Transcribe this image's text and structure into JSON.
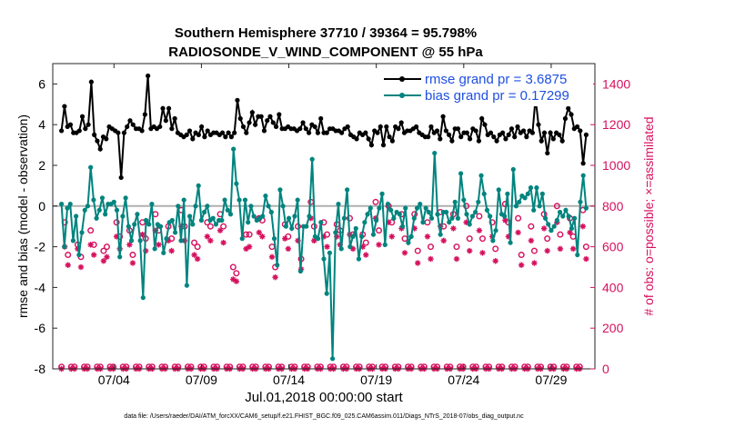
{
  "chart_data": {
    "type": "line",
    "title_line1": "Southern Hemisphere 37710 / 39364 = 95.798%",
    "title_line2": "RADIOSONDE_V_WIND_COMPONENT @ 55 hPa",
    "xlabel": "Jul.01,2018 00:00:00 start",
    "ylabel_left": "rmse and bias (model - observation)",
    "ylabel_right": "# of obs: o=possible; ×=assimilated",
    "footer": "data file: /Users/raeder/DAI/ATM_forcXX/CAM6_setup/f.e21.FHIST_BGC.f09_025.CAM6assim.011/Diags_NTrS_2018-07/obs_diag_output.nc",
    "ylim_left": [
      -8,
      7
    ],
    "ylim_right": [
      0,
      1500
    ],
    "xlim": [
      0.5,
      31.5
    ],
    "yticks_left": [
      "-8",
      "-6",
      "-4",
      "-2",
      "0",
      "2",
      "4",
      "6"
    ],
    "yticks_right": [
      "0",
      "200",
      "400",
      "600",
      "800",
      "1000",
      "1200",
      "1400"
    ],
    "x_ticks": [
      {
        "x": 4,
        "label": "07/04"
      },
      {
        "x": 9,
        "label": "07/09"
      },
      {
        "x": 14,
        "label": "07/14"
      },
      {
        "x": 19,
        "label": "07/19"
      },
      {
        "x": 24,
        "label": "07/24"
      },
      {
        "x": 29,
        "label": "07/29"
      }
    ],
    "zero_line": 0,
    "series": [
      {
        "name": "rmse grand pr = 3.6875",
        "color": "#000000",
        "axis": "left",
        "values": [
          3.7,
          4.9,
          3.9,
          4.0,
          3.6,
          3.6,
          3.7,
          4.4,
          3.8,
          4.0,
          6.1,
          3.5,
          3.2,
          2.8,
          3.4,
          3.3,
          3.9,
          3.8,
          3.7,
          3.6,
          1.4,
          3.6,
          3.9,
          4.2,
          4.0,
          3.8,
          3.8,
          3.7,
          4.5,
          6.4,
          3.8,
          3.9,
          3.8,
          3.9,
          4.8,
          4.2,
          4.8,
          3.8,
          4.3,
          3.6,
          3.5,
          3.4,
          3.5,
          3.7,
          3.3,
          3.6,
          3.5,
          3.9,
          3.4,
          3.7,
          3.5,
          3.6,
          3.6,
          3.5,
          3.6,
          3.4,
          3.6,
          3.4,
          3.6,
          5.2,
          4.3,
          3.9,
          3.6,
          4.1,
          4.6,
          4.0,
          4.4,
          4.4,
          3.7,
          4.2,
          4.4,
          4.1,
          3.9,
          4.5,
          3.8,
          3.8,
          3.9,
          3.8,
          3.8,
          3.7,
          3.8,
          4.1,
          3.8,
          3.6,
          4.0,
          3.9,
          3.6,
          4.3,
          3.6,
          3.6,
          3.8,
          3.8,
          3.7,
          3.7,
          3.6,
          3.8,
          3.9,
          3.5,
          3.4,
          3.3,
          3.6,
          3.5,
          3.6,
          3.3,
          3.0,
          3.7,
          3.6,
          3.9,
          3.0,
          3.9,
          3.4,
          3.2,
          3.9,
          3.8,
          4.1,
          3.6,
          3.7,
          3.7,
          3.8,
          3.9,
          3.6,
          3.5,
          3.4,
          3.4,
          3.9,
          3.6,
          3.7,
          3.3,
          4.4,
          3.7,
          3.5,
          3.2,
          3.8,
          3.8,
          3.4,
          3.6,
          3.6,
          3.3,
          3.8,
          3.7,
          3.2,
          4.3,
          4.0,
          3.5,
          3.6,
          3.4,
          3.2,
          3.5,
          3.6,
          3.3,
          3.5,
          3.8,
          3.4,
          3.9,
          3.6,
          3.7,
          3.4,
          3.7,
          3.6,
          5.3,
          4.0,
          3.2,
          3.6,
          2.6,
          3.6,
          3.3,
          3.6,
          3.5,
          3.2,
          4.3,
          4.8,
          4.5,
          3.8,
          3.9,
          3.7,
          2.1,
          3.5
        ]
      },
      {
        "name": "bias grand pr = 0.17299",
        "color": "#00847e",
        "axis": "left",
        "values": [
          0.1,
          -2.0,
          -0.1,
          0.1,
          -1.7,
          -0.5,
          -2.4,
          -1.3,
          -0.2,
          0.0,
          1.9,
          0.3,
          -0.6,
          -0.2,
          0.4,
          -0.4,
          0.1,
          0.1,
          0.2,
          -0.2,
          -2.5,
          -0.5,
          0.4,
          -1.0,
          -1.7,
          -0.9,
          -0.4,
          -1.7,
          -4.5,
          -0.7,
          -0.9,
          0.1,
          -2.1,
          -0.9,
          -1.0,
          -2.3,
          -1.6,
          -0.8,
          -0.7,
          -1.3,
          0.0,
          -1.7,
          0.3,
          -3.9,
          -0.5,
          -0.9,
          0.0,
          1.0,
          -0.7,
          -0.3,
          0.0,
          -0.7,
          -0.6,
          -0.9,
          -0.7,
          -0.7,
          0.3,
          -0.2,
          -0.4,
          2.8,
          1.1,
          0.3,
          -1.6,
          0.3,
          -0.8,
          0.0,
          -0.5,
          -0.7,
          -0.6,
          -0.5,
          0.5,
          0.0,
          -0.3,
          -1.6,
          -2.9,
          0.8,
          0.0,
          -1.0,
          -0.6,
          -1.1,
          -0.5,
          0.3,
          -3.2,
          -1.0,
          -1.0,
          -0.5,
          2.3,
          -1.5,
          -1.6,
          -0.8,
          -2.6,
          -4.3,
          -2.3,
          -7.5,
          -1.3,
          0.1,
          -2.1,
          -0.6,
          0.8,
          -2.0,
          -1.5,
          -1.1,
          -2.6,
          -1.5,
          -0.8,
          -0.4,
          -0.1,
          -1.4,
          -0.7,
          -0.1,
          0.6,
          -1.9,
          0.1,
          -0.2,
          -0.6,
          -0.3,
          -0.4,
          -1.0,
          -0.1,
          -1.8,
          -1.5,
          -0.6,
          -0.1,
          0.1,
          -0.8,
          -0.1,
          -0.3,
          -0.6,
          2.6,
          -0.4,
          -1.4,
          -0.3,
          -0.3,
          -0.8,
          -0.6,
          0.2,
          -0.6,
          1.6,
          0.3,
          -0.4,
          -0.9,
          -0.5,
          -0.3,
          0.2,
          1.5,
          0.6,
          -0.2,
          -0.5,
          -1.7,
          -1.2,
          0.8,
          -0.4,
          -0.5,
          0.6,
          -1.8,
          1.8,
          0.0,
          0.2,
          0.5,
          0.4,
          0.6,
          0.9,
          -0.2,
          0.9,
          0.0,
          0.6,
          -0.6,
          -0.9,
          -1.2,
          -1.0,
          -0.7,
          -0.3,
          -0.5,
          -0.2,
          -0.5,
          -1.1,
          -0.6,
          -2.4,
          0.2,
          1.5,
          -0.1
        ]
      },
      {
        "name": "possible obs",
        "color": "#d6105e",
        "axis": "right",
        "marker": "circle",
        "values": [
          10,
          720,
          560,
          10,
          10,
          610,
          550,
          10,
          10,
          680,
          610,
          10,
          10,
          580,
          600,
          10,
          10,
          720,
          650,
          10,
          10,
          680,
          560,
          10,
          10,
          720,
          640,
          10,
          10,
          760,
          680,
          10,
          10,
          700,
          640,
          10,
          10,
          780,
          700,
          10,
          10,
          620,
          600,
          10,
          10,
          720,
          700,
          10,
          10,
          760,
          700,
          10,
          10,
          500,
          470,
          10,
          10,
          660,
          660,
          10,
          10,
          740,
          730,
          10,
          10,
          600,
          500,
          10,
          10,
          710,
          650,
          10,
          10,
          700,
          540,
          10,
          10,
          820,
          700,
          10,
          10,
          720,
          660,
          10,
          10,
          710,
          680,
          10,
          10,
          740,
          660,
          10,
          10,
          660,
          620,
          10,
          10,
          820,
          680,
          10,
          10,
          800,
          720,
          10,
          10,
          760,
          640,
          10,
          10,
          760,
          580,
          10,
          10,
          720,
          600,
          10,
          10,
          770,
          700,
          10,
          10,
          760,
          600,
          10,
          10,
          800,
          640,
          10,
          10,
          750,
          640,
          10,
          10,
          720,
          590,
          10,
          10,
          810,
          720,
          10,
          10,
          740,
          560,
          10,
          10,
          700,
          580,
          10,
          10,
          760,
          640,
          10,
          10,
          800,
          660,
          10,
          10,
          740,
          650,
          10,
          10,
          780,
          600
        ]
      },
      {
        "name": "assimilated obs",
        "color": "#d6105e",
        "axis": "right",
        "marker": "asterisk",
        "values": [
          0,
          600,
          510,
          0,
          0,
          590,
          500,
          0,
          0,
          610,
          560,
          0,
          0,
          530,
          550,
          0,
          0,
          650,
          590,
          0,
          0,
          610,
          520,
          0,
          0,
          660,
          580,
          0,
          0,
          680,
          610,
          0,
          0,
          630,
          580,
          0,
          0,
          700,
          630,
          0,
          0,
          560,
          540,
          0,
          0,
          650,
          630,
          0,
          0,
          680,
          620,
          0,
          0,
          440,
          430,
          0,
          0,
          590,
          600,
          0,
          0,
          670,
          650,
          0,
          0,
          550,
          450,
          0,
          0,
          640,
          590,
          0,
          0,
          630,
          490,
          0,
          0,
          740,
          630,
          0,
          0,
          650,
          600,
          0,
          0,
          650,
          610,
          0,
          0,
          660,
          590,
          0,
          0,
          600,
          560,
          0,
          0,
          740,
          610,
          0,
          0,
          720,
          650,
          0,
          0,
          690,
          570,
          0,
          0,
          690,
          520,
          0,
          0,
          650,
          540,
          0,
          0,
          700,
          630,
          0,
          0,
          690,
          540,
          0,
          0,
          720,
          580,
          0,
          0,
          680,
          570,
          0,
          0,
          650,
          530,
          0,
          0,
          730,
          650,
          0,
          0,
          670,
          510,
          0,
          0,
          630,
          520,
          0,
          0,
          690,
          580,
          0,
          0,
          720,
          590,
          0,
          0,
          670,
          590,
          0,
          0,
          700,
          540
        ]
      }
    ],
    "legend": [
      {
        "label": "rmse grand pr = 3.6875",
        "color": "#000000"
      },
      {
        "label": "bias grand pr = 0.17299",
        "color": "#00847e"
      }
    ]
  }
}
